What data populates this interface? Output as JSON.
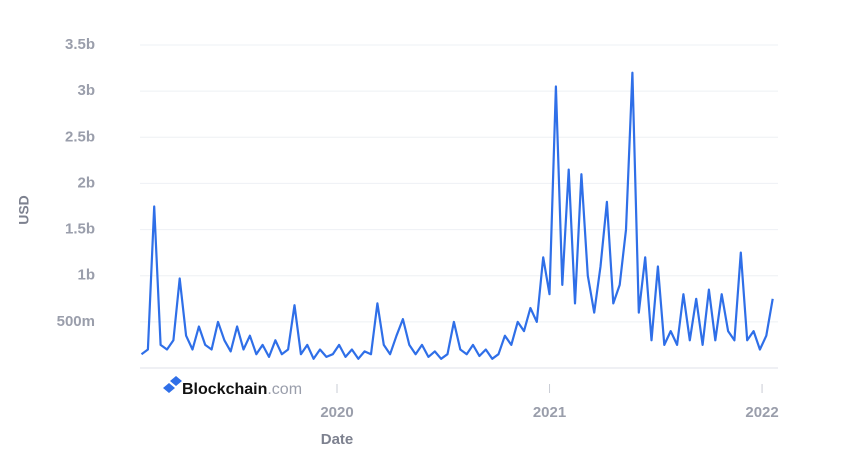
{
  "chart_data": {
    "type": "line",
    "y_label": "USD",
    "x_label": "Date",
    "color": "#2f6fe8",
    "grid": true,
    "annotations": [
      "Blockchain",
      ".com"
    ],
    "xlim": [
      2019.073,
      2022.075
    ],
    "xticks": [
      2020,
      2021,
      2022
    ],
    "ylim": [
      0,
      3500000000
    ],
    "yticks": [
      {
        "value": 500000000,
        "label": "500m"
      },
      {
        "value": 1000000000,
        "label": "1b"
      },
      {
        "value": 1500000000,
        "label": "1.5b"
      },
      {
        "value": 2000000000,
        "label": "2b"
      },
      {
        "value": 2500000000,
        "label": "2.5b"
      },
      {
        "value": 3000000000,
        "label": "3b"
      },
      {
        "value": 3500000000,
        "label": "3.5b"
      }
    ],
    "x": [
      2019.08,
      2019.11,
      2019.14,
      2019.17,
      2019.2,
      2019.23,
      2019.26,
      2019.29,
      2019.32,
      2019.35,
      2019.38,
      2019.41,
      2019.44,
      2019.47,
      2019.5,
      2019.53,
      2019.56,
      2019.59,
      2019.62,
      2019.65,
      2019.68,
      2019.71,
      2019.74,
      2019.77,
      2019.8,
      2019.83,
      2019.86,
      2019.89,
      2019.92,
      2019.95,
      2019.98,
      2020.01,
      2020.04,
      2020.07,
      2020.1,
      2020.13,
      2020.16,
      2020.19,
      2020.22,
      2020.25,
      2020.28,
      2020.31,
      2020.34,
      2020.37,
      2020.4,
      2020.43,
      2020.46,
      2020.49,
      2020.52,
      2020.55,
      2020.58,
      2020.61,
      2020.64,
      2020.67,
      2020.7,
      2020.73,
      2020.76,
      2020.79,
      2020.82,
      2020.85,
      2020.88,
      2020.91,
      2020.94,
      2020.97,
      2021.0,
      2021.03,
      2021.06,
      2021.09,
      2021.12,
      2021.15,
      2021.18,
      2021.21,
      2021.24,
      2021.27,
      2021.3,
      2021.33,
      2021.36,
      2021.39,
      2021.42,
      2021.45,
      2021.48,
      2021.51,
      2021.54,
      2021.57,
      2021.6,
      2021.63,
      2021.66,
      2021.69,
      2021.72,
      2021.75,
      2021.78,
      2021.81,
      2021.84,
      2021.87,
      2021.9,
      2021.93,
      2021.96,
      2021.99,
      2022.02,
      2022.05
    ],
    "series": [
      {
        "values": [
          150000000,
          200000000,
          1750000000,
          250000000,
          200000000,
          300000000,
          970000000,
          350000000,
          200000000,
          450000000,
          250000000,
          200000000,
          500000000,
          300000000,
          180000000,
          450000000,
          200000000,
          350000000,
          150000000,
          250000000,
          120000000,
          300000000,
          150000000,
          200000000,
          680000000,
          150000000,
          250000000,
          100000000,
          200000000,
          120000000,
          150000000,
          250000000,
          120000000,
          200000000,
          100000000,
          180000000,
          150000000,
          700000000,
          250000000,
          150000000,
          350000000,
          530000000,
          250000000,
          150000000,
          250000000,
          120000000,
          180000000,
          100000000,
          150000000,
          500000000,
          200000000,
          150000000,
          250000000,
          130000000,
          200000000,
          100000000,
          150000000,
          350000000,
          250000000,
          500000000,
          400000000,
          650000000,
          500000000,
          1200000000,
          800000000,
          3050000000,
          900000000,
          2150000000,
          700000000,
          2100000000,
          1000000000,
          600000000,
          1100000000,
          1800000000,
          700000000,
          900000000,
          1500000000,
          3200000000,
          600000000,
          1200000000,
          300000000,
          1100000000,
          250000000,
          400000000,
          250000000,
          800000000,
          300000000,
          750000000,
          250000000,
          850000000,
          300000000,
          800000000,
          400000000,
          300000000,
          1250000000,
          300000000,
          400000000,
          200000000,
          350000000,
          750000000
        ]
      }
    ]
  }
}
